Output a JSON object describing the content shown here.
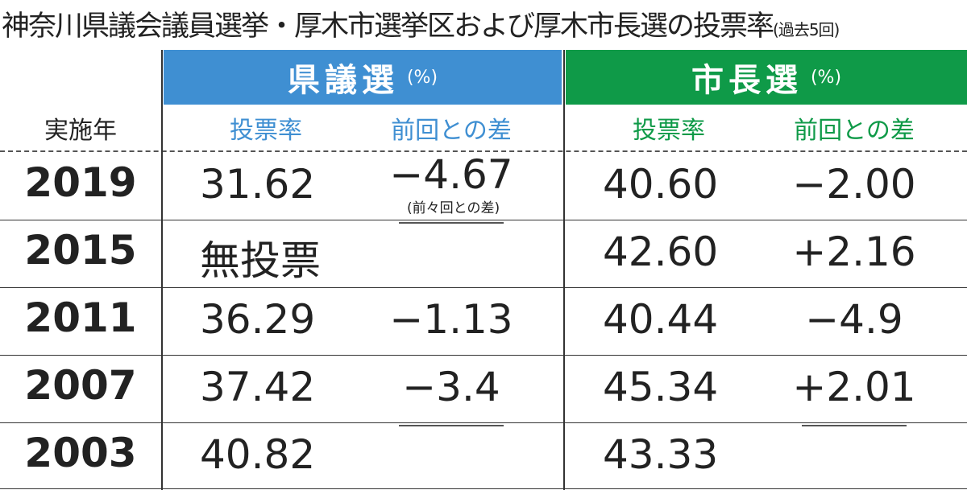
{
  "header": {
    "title": "神奈川県議会議員選挙・厚木市選挙区および厚木市長選の投票率",
    "subtitle": "(過去5回)"
  },
  "table": {
    "groups": [
      {
        "label": "県議選",
        "unit": "(%)"
      },
      {
        "label": "市長選",
        "unit": "(%)"
      }
    ],
    "columns": [
      "実施年",
      "投票率",
      "前回との差",
      "投票率",
      "前回との差"
    ],
    "rows": [
      {
        "year": "2019",
        "cells": [
          "31.62",
          "−4.67",
          "40.60",
          "−2.00"
        ],
        "note": "(前々回との差)"
      },
      {
        "year": "2015",
        "cells": [
          "無投票",
          null,
          "42.60",
          "+2.16"
        ]
      },
      {
        "year": "2011",
        "cells": [
          "36.29",
          "−1.13",
          "40.44",
          "−4.9"
        ]
      },
      {
        "year": "2007",
        "cells": [
          "37.42",
          "−3.4",
          "45.34",
          "+2.01"
        ]
      },
      {
        "year": "2003",
        "cells": [
          "40.82",
          null,
          "43.33",
          null
        ]
      }
    ]
  }
}
